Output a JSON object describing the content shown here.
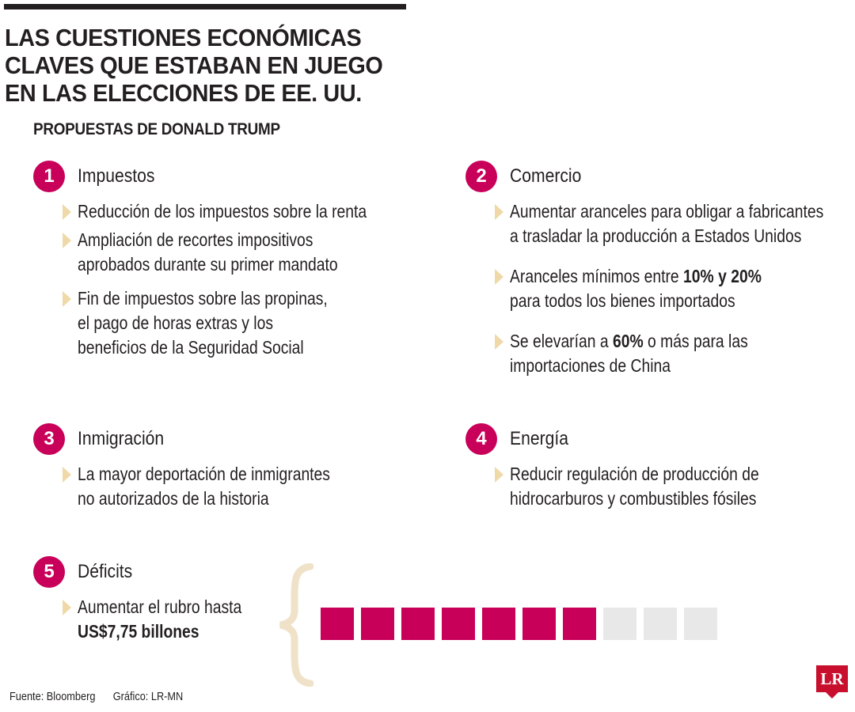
{
  "title": {
    "lines": [
      "LAS CUESTIONES ECONÓMICAS",
      "CLAVES QUE ESTABAN EN JUEGO",
      "EN LAS ELECCIONES DE EE. UU."
    ]
  },
  "subtitle": "PROPUESTAS DE DONALD TRUMP",
  "sections": [
    {
      "number": "1",
      "title": "Impuestos",
      "items": [
        [
          "Reducción de los impuestos sobre la renta"
        ],
        [
          "Ampliación de recortes impositivos",
          "aprobados durante su primer mandato"
        ],
        [
          "Fin de impuestos sobre las propinas,",
          "el pago de horas extras y los",
          "beneficios de la Seguridad Social"
        ]
      ]
    },
    {
      "number": "2",
      "title": "Comercio",
      "items": [
        [
          "Aumentar aranceles para obligar a fabricantes",
          "a trasladar la producción a Estados Unidos"
        ],
        [
          "Aranceles mínimos entre 10% y 20%",
          "para todos los bienes importados"
        ],
        [
          "Se elevarían a 60% o más para las",
          "importaciones de China"
        ]
      ]
    },
    {
      "number": "3",
      "title": "Inmigración",
      "items": [
        [
          "La mayor deportación de inmigrantes",
          "no autorizados de la historia"
        ]
      ]
    },
    {
      "number": "4",
      "title": "Energía",
      "items": [
        [
          "Reducir regulación de producción de",
          "hidrocarburos y combustibles fósiles"
        ]
      ]
    },
    {
      "number": "5",
      "title": "Déficits",
      "items": [
        [
          "Aumentar el rubro hasta",
          "US$7,75 billones"
        ]
      ]
    }
  ],
  "deficit_blocks": {
    "total": 10,
    "filled": 7,
    "filled_color": "#c8005a",
    "empty_color": "#e8e8e8"
  },
  "footer": {
    "source": "Fuente: Bloomberg",
    "graphic": "Gráfico: LR-MN"
  },
  "logo": {
    "text": "LR"
  },
  "colors": {
    "accent": "#c8005a",
    "bullet": "#f0d9a8",
    "brace": "#efe2c8"
  }
}
